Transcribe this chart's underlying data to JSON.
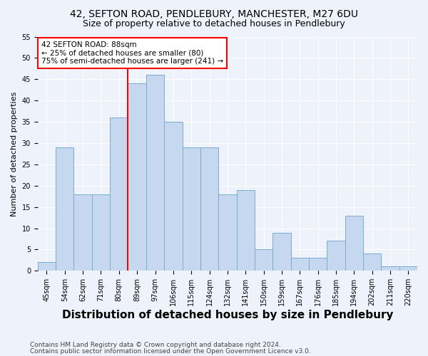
{
  "title1": "42, SEFTON ROAD, PENDLEBURY, MANCHESTER, M27 6DU",
  "title2": "Size of property relative to detached houses in Pendlebury",
  "xlabel": "Distribution of detached houses by size in Pendlebury",
  "ylabel": "Number of detached properties",
  "categories": [
    "45sqm",
    "54sqm",
    "62sqm",
    "71sqm",
    "80sqm",
    "89sqm",
    "97sqm",
    "106sqm",
    "115sqm",
    "124sqm",
    "132sqm",
    "141sqm",
    "150sqm",
    "159sqm",
    "167sqm",
    "176sqm",
    "185sqm",
    "194sqm",
    "202sqm",
    "211sqm",
    "220sqm"
  ],
  "values": [
    2,
    29,
    18,
    18,
    36,
    44,
    46,
    35,
    29,
    29,
    18,
    19,
    5,
    9,
    3,
    3,
    7,
    13,
    4,
    1,
    1
  ],
  "bar_color": "#c5d8f0",
  "bar_edge_color": "#7aacce",
  "red_line_index": 5,
  "annotation_title": "42 SEFTON ROAD: 88sqm",
  "annotation_line1": "← 25% of detached houses are smaller (80)",
  "annotation_line2": "75% of semi-detached houses are larger (241) →",
  "footer1": "Contains HM Land Registry data © Crown copyright and database right 2024.",
  "footer2": "Contains public sector information licensed under the Open Government Licence v3.0.",
  "ylim": [
    0,
    55
  ],
  "bg_color": "#eef2fa",
  "grid_color": "#ffffff",
  "title_fontsize": 10,
  "subtitle_fontsize": 9,
  "xlabel_fontsize": 11,
  "ylabel_fontsize": 8,
  "tick_fontsize": 7,
  "footer_fontsize": 6.5
}
